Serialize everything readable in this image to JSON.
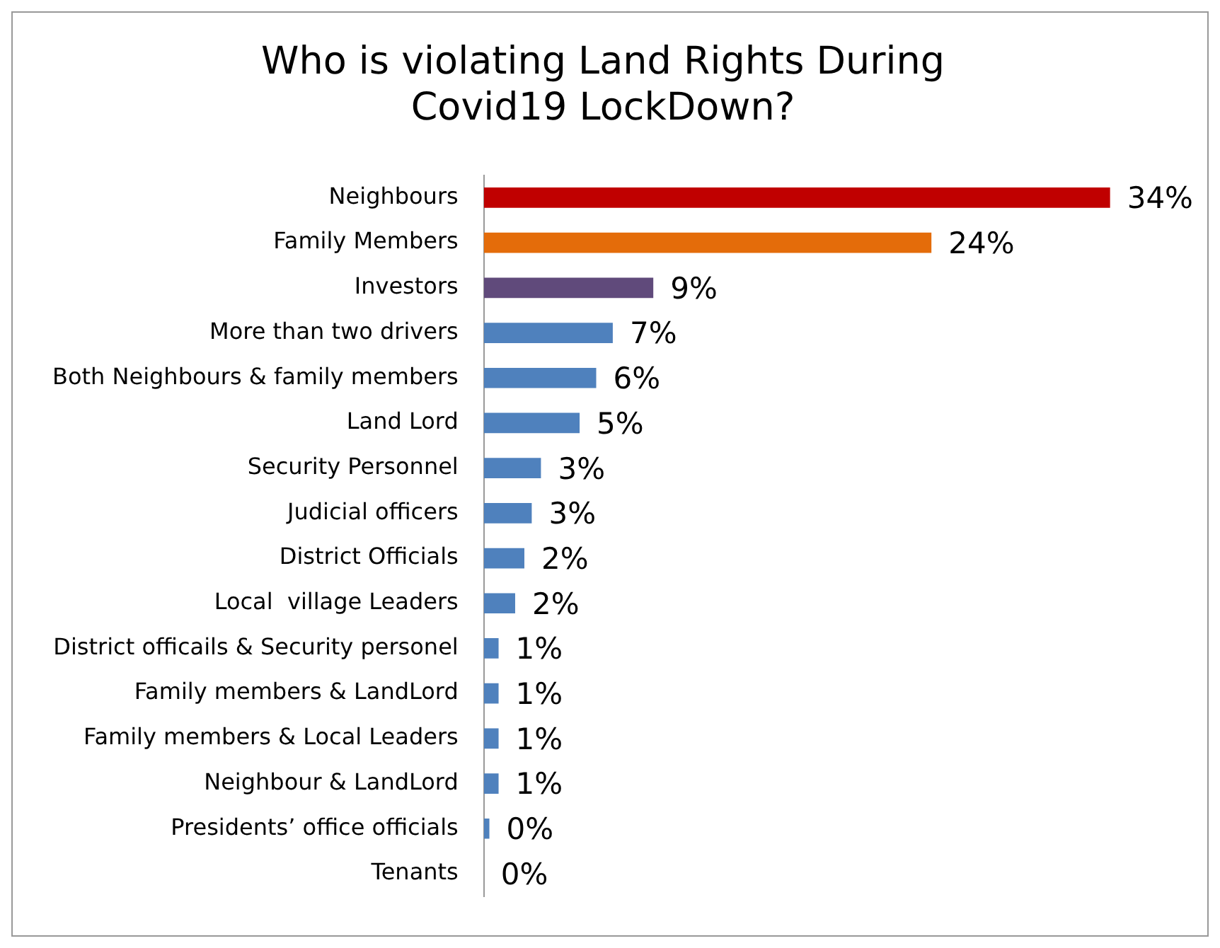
{
  "chart_data": {
    "type": "bar",
    "orientation": "horizontal",
    "title": "Who is violating Land Rights During Covid19 LockDown?",
    "categories": [
      "Neighbours",
      "Family Members",
      "Investors",
      "More than two drivers",
      "Both Neighbours & family members",
      "Land Lord",
      "Security Personnel",
      "Judicial officers",
      "District Officials",
      "Local  village Leaders",
      "District officails & Security personel",
      "Family members & LandLord",
      "Family members & Local Leaders",
      "Neighbour & LandLord",
      "Presidents’ office officials",
      "Tenants"
    ],
    "values": [
      34,
      24.3,
      9.2,
      7.0,
      6.1,
      5.2,
      3.1,
      2.6,
      2.2,
      1.7,
      0.8,
      0.8,
      0.8,
      0.8,
      0.3,
      0
    ],
    "value_labels": [
      "34%",
      "24%",
      "9%",
      "7%",
      "6%",
      "5%",
      "3%",
      "3%",
      "2%",
      "2%",
      "1%",
      "1%",
      "1%",
      "1%",
      "0%",
      "0%"
    ],
    "colors": [
      "#c00000",
      "#e46c0a",
      "#604a7b",
      "#4f81bd",
      "#4f81bd",
      "#4f81bd",
      "#4f81bd",
      "#4f81bd",
      "#4f81bd",
      "#4f81bd",
      "#4f81bd",
      "#4f81bd",
      "#4f81bd",
      "#4f81bd",
      "#4f81bd",
      "#4f81bd"
    ]
  }
}
